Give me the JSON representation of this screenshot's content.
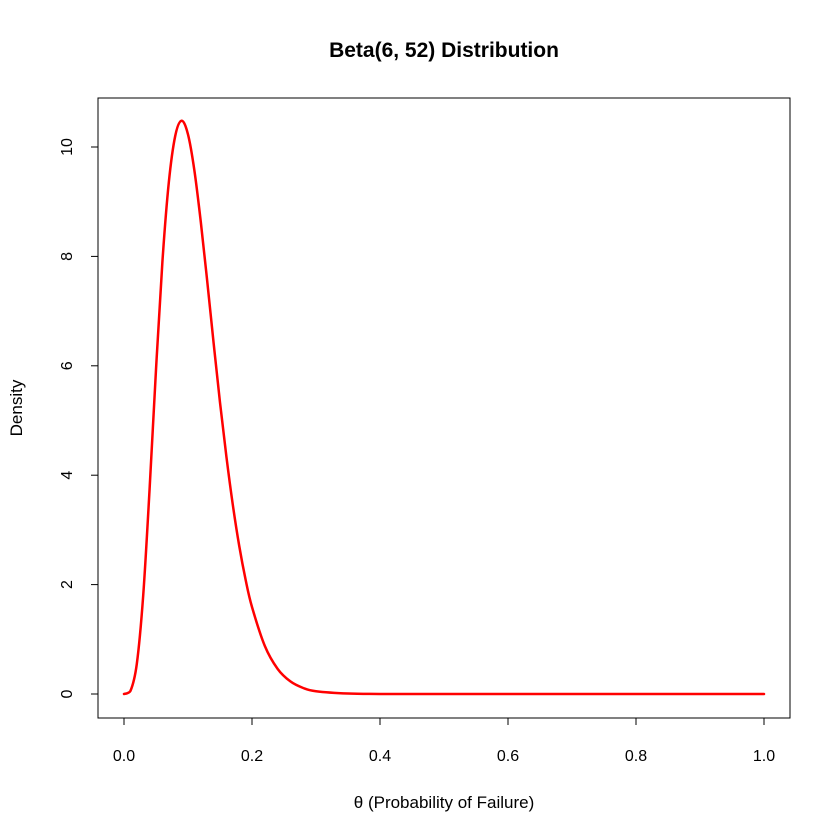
{
  "chart_data": {
    "type": "line",
    "title": "Beta(6, 52) Distribution",
    "xlabel": "θ (Probability of Failure)",
    "ylabel": "Density",
    "xlim": [
      0.0,
      1.0
    ],
    "ylim": [
      0,
      10.5
    ],
    "xticks": [
      0.0,
      0.2,
      0.4,
      0.6,
      0.8,
      1.0
    ],
    "xtick_labels": [
      "0.0",
      "0.2",
      "0.4",
      "0.6",
      "0.8",
      "1.0"
    ],
    "yticks": [
      0,
      2,
      4,
      6,
      8,
      10
    ],
    "ytick_labels": [
      "0",
      "2",
      "4",
      "6",
      "8",
      "10"
    ],
    "grid": false,
    "series": [
      {
        "color": "#ff0000",
        "x": [
          0.0,
          0.01,
          0.02,
          0.03,
          0.04,
          0.05,
          0.06,
          0.07,
          0.08,
          0.09,
          0.1,
          0.11,
          0.12,
          0.13,
          0.14,
          0.15,
          0.16,
          0.17,
          0.18,
          0.19,
          0.2,
          0.22,
          0.24,
          0.26,
          0.28,
          0.3,
          0.35,
          0.4,
          0.5,
          0.6,
          0.7,
          0.8,
          0.9,
          1.0
        ],
        "y": [
          0.0,
          0.054,
          0.55,
          1.8,
          3.75,
          5.93,
          7.9,
          9.35,
          10.2,
          10.48,
          10.23,
          9.57,
          8.63,
          7.55,
          6.42,
          5.33,
          4.34,
          3.46,
          2.71,
          2.09,
          1.59,
          0.88,
          0.46,
          0.23,
          0.11,
          0.05,
          0.008,
          0.001,
          0.0,
          0.0,
          0.0,
          0.0,
          0.0,
          0.0
        ]
      }
    ]
  }
}
